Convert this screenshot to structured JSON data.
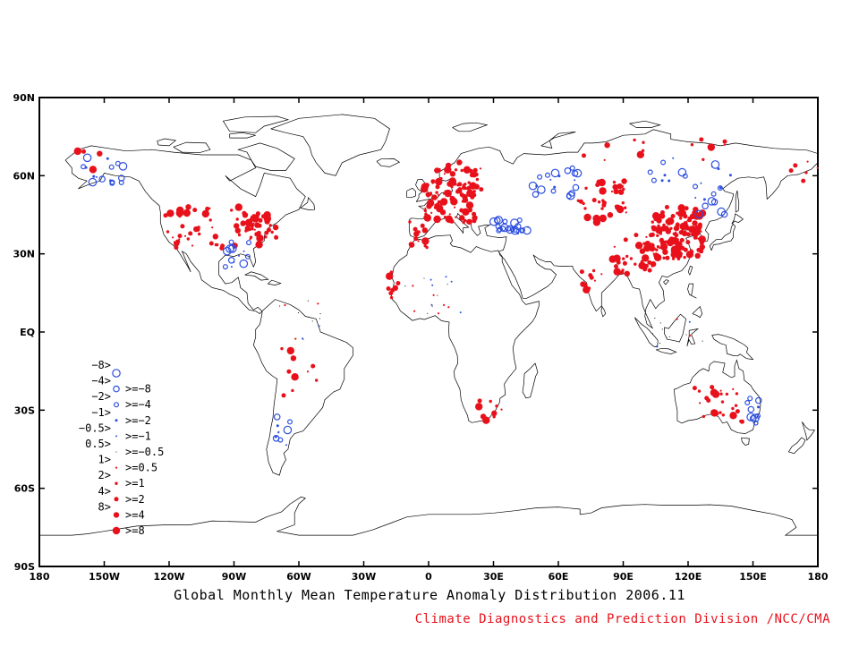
{
  "title": "Global Monthly Mean Temperature Anomaly Distribution 2006.11",
  "credit": "Climate Diagnostics and Prediction Division /NCC/CMA",
  "colors": {
    "cold": "#2d4fe0",
    "warm": "#e8111b",
    "coast": "#000000"
  },
  "lat_ticks": [
    "90N",
    "60N",
    "30N",
    "EQ",
    "30S",
    "60S",
    "90S"
  ],
  "lon_ticks": [
    "180",
    "150W",
    "120W",
    "90W",
    "60W",
    "30W",
    "0",
    "30E",
    "60E",
    "90E",
    "120E",
    "150E",
    "180"
  ],
  "legend": [
    {
      "left": "−8>",
      "right": "",
      "sym": "cold-xl"
    },
    {
      "left": "−4>",
      "right": ">=−8",
      "sym": "cold-l"
    },
    {
      "left": "−2>",
      "right": ">=−4",
      "sym": "cold-m"
    },
    {
      "left": "−1>",
      "right": ">=−2",
      "sym": "cold-s"
    },
    {
      "left": "−0.5>",
      "right": ">=−1",
      "sym": "cold-xs"
    },
    {
      "left": "0.5>",
      "right": ">=−0.5",
      "sym": "dot"
    },
    {
      "left": "1>",
      "right": ">=0.5",
      "sym": "warm-xs"
    },
    {
      "left": "2>",
      "right": ">=1",
      "sym": "warm-s"
    },
    {
      "left": "4>",
      "right": ">=2",
      "sym": "warm-m"
    },
    {
      "left": "8>",
      "right": ">=4",
      "sym": "warm-l"
    },
    {
      "left": "",
      "right": ">=8",
      "sym": "warm-xl"
    }
  ]
}
